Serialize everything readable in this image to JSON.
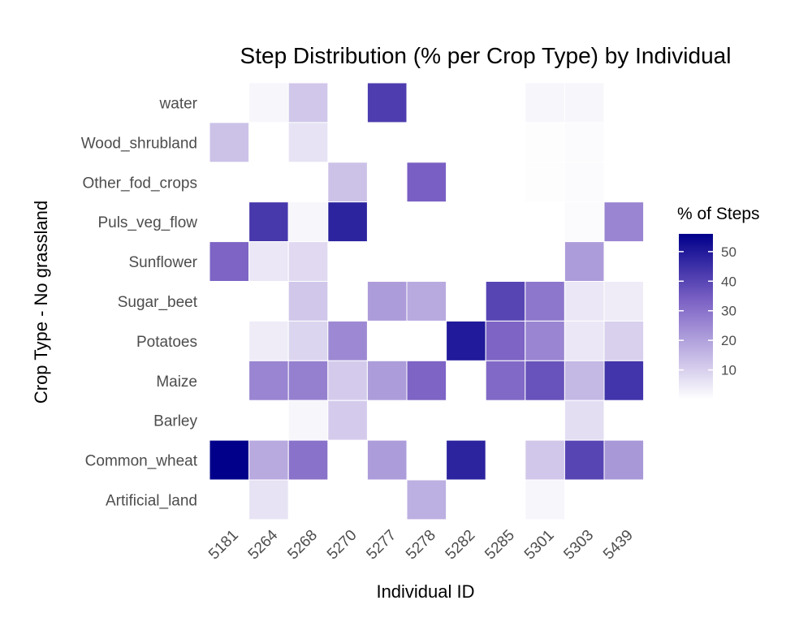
{
  "chart_data": {
    "type": "heatmap",
    "title": "Step Distribution (% per Crop Type) by Individual",
    "xlabel": "Individual ID",
    "ylabel": "Crop Type - No grassland",
    "x_categories": [
      "5181",
      "5264",
      "5268",
      "5270",
      "5277",
      "5278",
      "5282",
      "5285",
      "5301",
      "5303",
      "5439"
    ],
    "y_categories": [
      "water",
      "Wood_shrubland",
      "Other_fod_crops",
      "Puls_veg_flow",
      "Sunflower",
      "Sugar_beet",
      "Potatoes",
      "Maize",
      "Barley",
      "Common_wheat",
      "Artificial_land"
    ],
    "cells": [
      [
        "5264",
        "water",
        2
      ],
      [
        "5268",
        "water",
        12
      ],
      [
        "5277",
        "water",
        42
      ],
      [
        "5301",
        "water",
        2
      ],
      [
        "5303",
        "water",
        2
      ],
      [
        "5181",
        "Wood_shrubland",
        13
      ],
      [
        "5268",
        "Wood_shrubland",
        6
      ],
      [
        "5301",
        "Wood_shrubland",
        0.5
      ],
      [
        "5303",
        "Wood_shrubland",
        1
      ],
      [
        "5270",
        "Other_fod_crops",
        13
      ],
      [
        "5278",
        "Other_fod_crops",
        34
      ],
      [
        "5301",
        "Other_fod_crops",
        0.5
      ],
      [
        "5303",
        "Other_fod_crops",
        1
      ],
      [
        "5264",
        "Puls_veg_flow",
        43
      ],
      [
        "5268",
        "Puls_veg_flow",
        2
      ],
      [
        "5270",
        "Puls_veg_flow",
        48
      ],
      [
        "5303",
        "Puls_veg_flow",
        1
      ],
      [
        "5439",
        "Puls_veg_flow",
        26
      ],
      [
        "5181",
        "Sunflower",
        33
      ],
      [
        "5264",
        "Sunflower",
        5
      ],
      [
        "5268",
        "Sunflower",
        8
      ],
      [
        "5303",
        "Sunflower",
        21
      ],
      [
        "5268",
        "Sugar_beet",
        12
      ],
      [
        "5277",
        "Sugar_beet",
        21
      ],
      [
        "5278",
        "Sugar_beet",
        18
      ],
      [
        "5285",
        "Sugar_beet",
        40
      ],
      [
        "5301",
        "Sugar_beet",
        29
      ],
      [
        "5303",
        "Sugar_beet",
        5
      ],
      [
        "5439",
        "Sugar_beet",
        4
      ],
      [
        "5264",
        "Potatoes",
        4
      ],
      [
        "5268",
        "Potatoes",
        9
      ],
      [
        "5270",
        "Potatoes",
        25
      ],
      [
        "5282",
        "Potatoes",
        50
      ],
      [
        "5285",
        "Potatoes",
        33
      ],
      [
        "5301",
        "Potatoes",
        26
      ],
      [
        "5303",
        "Potatoes",
        5
      ],
      [
        "5439",
        "Potatoes",
        10
      ],
      [
        "5264",
        "Maize",
        26
      ],
      [
        "5268",
        "Maize",
        27
      ],
      [
        "5270",
        "Maize",
        11
      ],
      [
        "5277",
        "Maize",
        21
      ],
      [
        "5278",
        "Maize",
        33
      ],
      [
        "5285",
        "Maize",
        32
      ],
      [
        "5301",
        "Maize",
        37
      ],
      [
        "5303",
        "Maize",
        15
      ],
      [
        "5439",
        "Maize",
        44
      ],
      [
        "5268",
        "Barley",
        2
      ],
      [
        "5270",
        "Barley",
        11
      ],
      [
        "5303",
        "Barley",
        7
      ],
      [
        "5181",
        "Common_wheat",
        56
      ],
      [
        "5264",
        "Common_wheat",
        18
      ],
      [
        "5268",
        "Common_wheat",
        30
      ],
      [
        "5277",
        "Common_wheat",
        21
      ],
      [
        "5282",
        "Common_wheat",
        48
      ],
      [
        "5301",
        "Common_wheat",
        12
      ],
      [
        "5303",
        "Common_wheat",
        40
      ],
      [
        "5439",
        "Common_wheat",
        22
      ],
      [
        "5264",
        "Artificial_land",
        6
      ],
      [
        "5278",
        "Artificial_land",
        17
      ],
      [
        "5301",
        "Artificial_land",
        2
      ]
    ],
    "legend": {
      "title": "% of Steps",
      "ticks": [
        10,
        20,
        30,
        40,
        50
      ],
      "range": [
        0,
        56
      ],
      "low_color": "#ffffff",
      "mid_color": "#7b61c4",
      "high_color": "#00008b",
      "placement": "right"
    },
    "grid": false
  }
}
